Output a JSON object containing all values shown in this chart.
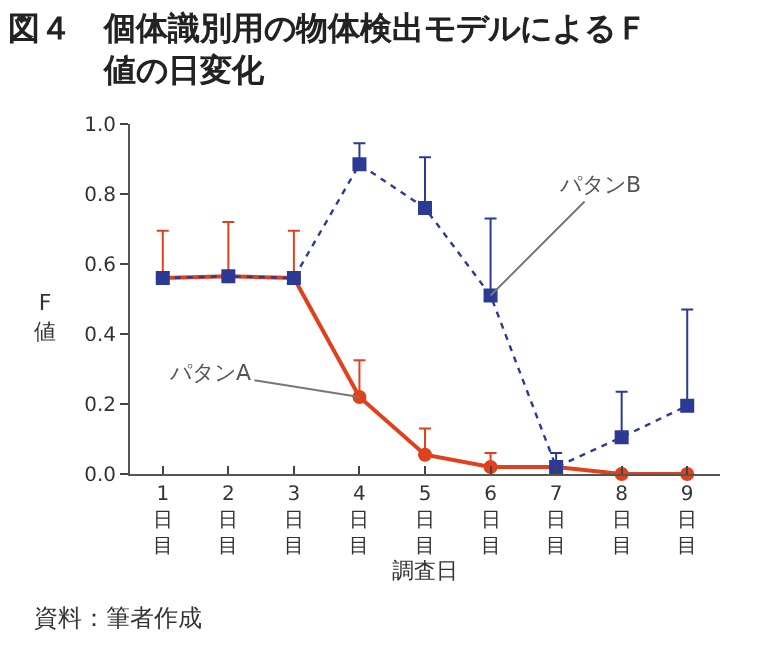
{
  "chart_data": {
    "type": "line",
    "title": "図４　個体識別用の物体検出モデルによるＦ値の日変化",
    "categories": [
      "1日目",
      "2日目",
      "3日目",
      "4日目",
      "5日目",
      "6日目",
      "7日目",
      "8日目",
      "9日目"
    ],
    "xlabel": "調査日",
    "ylabel": "F値",
    "series": [
      {
        "name": "パタンA",
        "color": "#e0401c",
        "marker": "circle",
        "line_style": "solid",
        "values": [
          0.56,
          0.565,
          0.56,
          0.22,
          0.055,
          0.02,
          0.02,
          0.0,
          0.0
        ],
        "errors": [
          [
            0.56,
            0.695
          ],
          [
            0.565,
            0.72
          ],
          [
            0.56,
            0.695
          ],
          [
            0.22,
            0.325
          ],
          [
            0.055,
            0.13
          ],
          [
            0.02,
            0.06
          ],
          null,
          null,
          null
        ]
      },
      {
        "name": "パタンB",
        "color": "#2b3a94",
        "marker": "square",
        "line_style": "dotted",
        "values": [
          0.56,
          0.565,
          0.56,
          0.885,
          0.76,
          0.51,
          0.02,
          0.105,
          0.195
        ],
        "errors": [
          null,
          null,
          null,
          [
            0.885,
            0.945
          ],
          [
            0.76,
            0.905
          ],
          [
            0.51,
            0.73
          ],
          [
            0.02,
            0.06
          ],
          [
            0.105,
            0.235
          ],
          [
            0.195,
            0.47
          ]
        ]
      }
    ],
    "ylim": [
      0,
      1.0
    ],
    "yticks": [
      {
        "value": 0,
        "label": "0.0"
      },
      0.2,
      0.4,
      0.6,
      0.8,
      {
        "value": 1.0,
        "label": "1.0"
      }
    ],
    "legend": false,
    "annotations": [
      "資料：筆者作成"
    ]
  }
}
